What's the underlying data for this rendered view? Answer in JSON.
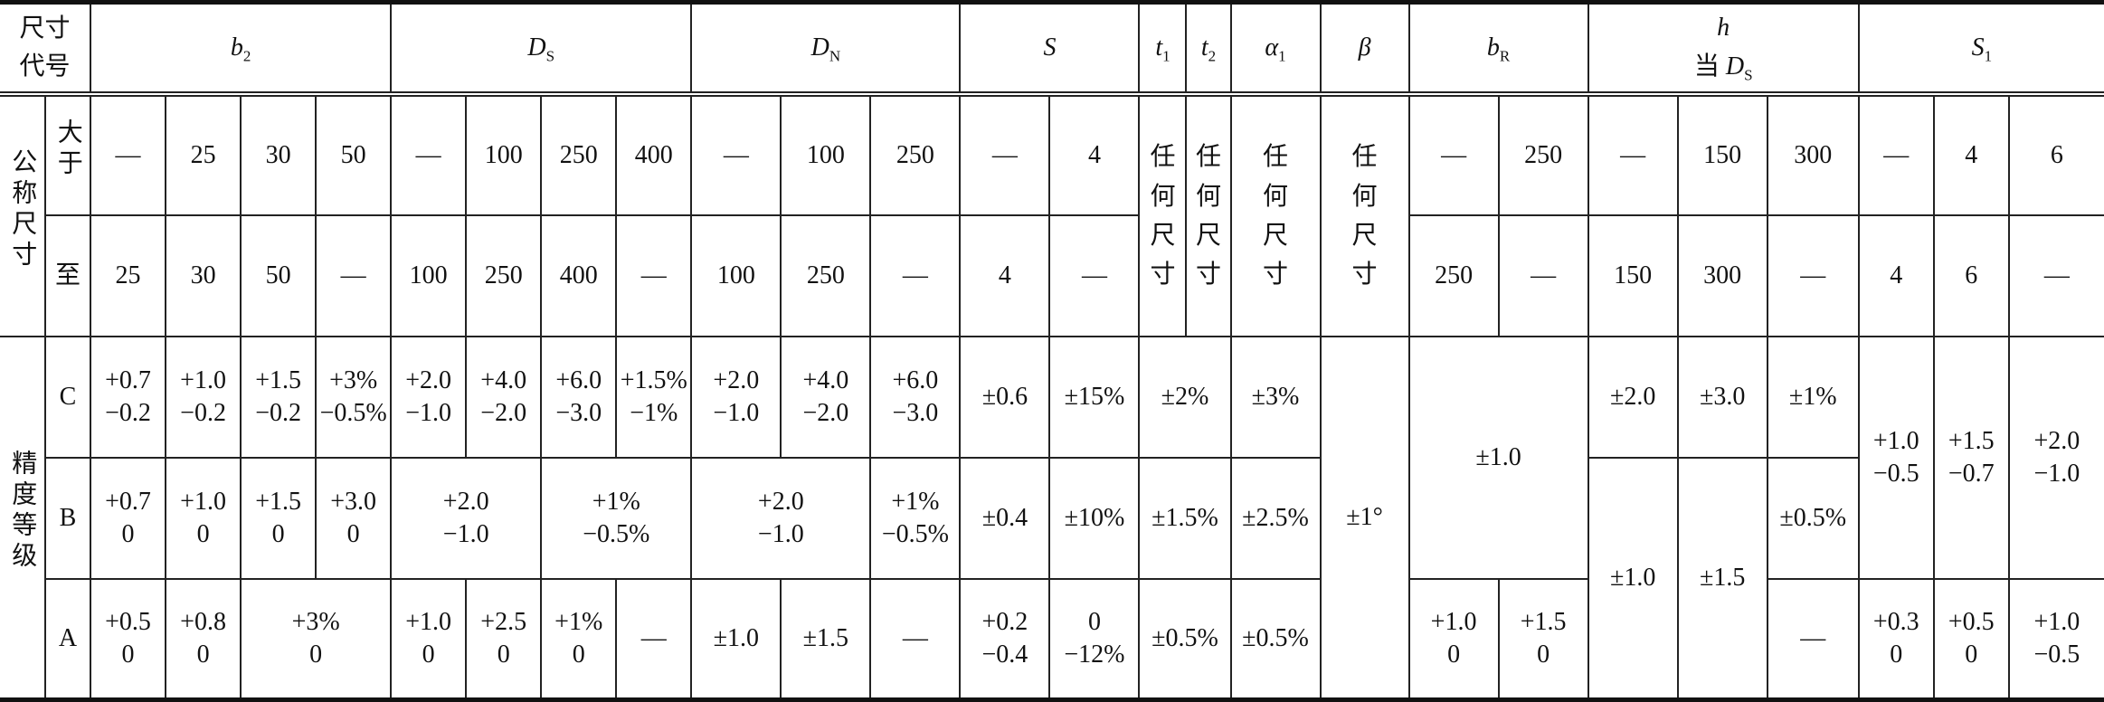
{
  "header": {
    "code_label": "尺寸代号",
    "b2": {
      "sym": "b",
      "sub": "2"
    },
    "DS": {
      "sym": "D",
      "sub": "S"
    },
    "DN": {
      "sym": "D",
      "sub": "N"
    },
    "S": {
      "sym": "S",
      "sub": ""
    },
    "t1": {
      "sym": "t",
      "sub": "1"
    },
    "t2": {
      "sym": "t",
      "sub": "2"
    },
    "a1": {
      "sym": "α",
      "sub": "1"
    },
    "beta": {
      "sym": "β",
      "sub": ""
    },
    "bR": {
      "sym": "b",
      "sub": "R"
    },
    "h": {
      "sym": "h",
      "when": "当",
      "sym2": "D",
      "sub2": "S"
    },
    "S1": {
      "sym": "S",
      "sub": "1"
    }
  },
  "nominal": {
    "label": "公称尺寸",
    "over_label": "大于",
    "to_label": "至",
    "any_size": "任\n何\n尺\n寸",
    "over": [
      "—",
      "25",
      "30",
      "50",
      "—",
      "100",
      "250",
      "400",
      "—",
      "100",
      "250",
      "—",
      "4",
      "—",
      "250",
      "—",
      "150",
      "300",
      "—",
      "4",
      "6"
    ],
    "to": [
      "25",
      "30",
      "50",
      "—",
      "100",
      "250",
      "400",
      "—",
      "100",
      "250",
      "—",
      "4",
      "—",
      "250",
      "—",
      "150",
      "300",
      "—",
      "4",
      "6",
      "—"
    ]
  },
  "grades": {
    "label": "精度等级",
    "C": {
      "label": "C",
      "cells": [
        "+0.7\n−0.2",
        "+1.0\n−0.2",
        "+1.5\n−0.2",
        "+3%\n−0.5%",
        "+2.0\n−1.0",
        "+4.0\n−2.0",
        "+6.0\n−3.0",
        "+1.5%\n−1%",
        "+2.0\n−1.0",
        "+4.0\n−2.0",
        "+6.0\n−3.0",
        "±0.6",
        "±15%",
        "±2%",
        "±3%",
        "±1°",
        "±1.0",
        "±2.0",
        "±3.0",
        "±1%",
        "+1.0\n−0.5",
        "+1.5\n−0.7",
        "+2.0\n−1.0"
      ]
    },
    "B": {
      "label": "B",
      "cells": [
        "+0.7\n0",
        "+1.0\n0",
        "+1.5\n0",
        "+3.0\n0",
        "+2.0\n−1.0",
        "+1%\n−0.5%",
        "+2.0\n−1.0",
        "+1%\n−0.5%",
        "±0.4",
        "±10%",
        "±1.5%",
        "±2.5%",
        "±1.0",
        "±1.5",
        "±0.5%"
      ]
    },
    "A": {
      "label": "A",
      "cells": [
        "+0.5\n0",
        "+0.8\n0",
        "+3%\n0",
        "+1.0\n0",
        "+2.5\n0",
        "+1%\n0",
        "—",
        "±1.0",
        "±1.5",
        "—",
        "+0.2\n−0.4",
        "0\n−12%",
        "±0.5%",
        "±0.5%",
        "+1.0\n0",
        "+1.5\n0",
        "—",
        "+0.3\n0",
        "+0.5\n0",
        "+1.0\n−0.5"
      ]
    }
  }
}
